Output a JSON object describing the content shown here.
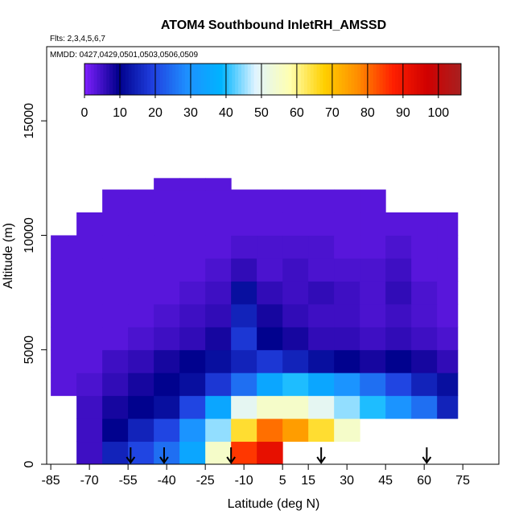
{
  "chart_data": {
    "type": "heatmap",
    "title": "ATOM4 Southbound InletRH_AMSSD",
    "notes": [
      "Flts: 2,3,4,5,6,7",
      "MMDD: 0427,0429,0501,0503,0506,0509"
    ],
    "x_label": "Latitude (deg N)",
    "y_label": "Altitude (m)",
    "x_edges": [
      -85,
      -75,
      -65,
      -55,
      -45,
      -35,
      -25,
      -15,
      -5,
      5,
      15,
      25,
      35,
      45,
      55,
      65,
      73
    ],
    "y_edges": [
      0,
      1000,
      2000,
      3000,
      4000,
      5000,
      6000,
      7000,
      8000,
      9000,
      10000,
      11000,
      12000,
      12500
    ],
    "values": [
      [
        null,
        5,
        15,
        20,
        25,
        35,
        55,
        85,
        92,
        null,
        null,
        null,
        null,
        null,
        null,
        null
      ],
      [
        null,
        5,
        10,
        15,
        20,
        30,
        45,
        65,
        80,
        75,
        65,
        55,
        null,
        null,
        null,
        null
      ],
      [
        null,
        5,
        8,
        10,
        12,
        20,
        35,
        50,
        55,
        55,
        50,
        45,
        40,
        30,
        25,
        15
      ],
      [
        3,
        4,
        6,
        8,
        10,
        12,
        18,
        25,
        35,
        40,
        35,
        30,
        25,
        20,
        15,
        12
      ],
      [
        3,
        3,
        5,
        6,
        8,
        10,
        12,
        15,
        18,
        15,
        12,
        10,
        8,
        10,
        8,
        6
      ],
      [
        3,
        3,
        3,
        4,
        5,
        6,
        8,
        18,
        10,
        8,
        6,
        6,
        5,
        6,
        5,
        4
      ],
      [
        3,
        3,
        3,
        3,
        4,
        5,
        6,
        15,
        8,
        6,
        5,
        5,
        4,
        5,
        4,
        3
      ],
      [
        3,
        3,
        3,
        3,
        3,
        4,
        5,
        12,
        6,
        5,
        6,
        5,
        4,
        6,
        4,
        3
      ],
      [
        3,
        3,
        3,
        3,
        3,
        3,
        4,
        6,
        4,
        5,
        4,
        4,
        4,
        5,
        3,
        3
      ],
      [
        3,
        3,
        3,
        3,
        3,
        3,
        3,
        4,
        4,
        4,
        4,
        3,
        3,
        4,
        3,
        3
      ],
      [
        null,
        3,
        3,
        3,
        3,
        3,
        3,
        3,
        3,
        3,
        3,
        3,
        3,
        3,
        3,
        3
      ],
      [
        null,
        null,
        3,
        3,
        3,
        3,
        3,
        3,
        3,
        3,
        3,
        3,
        3,
        null,
        null,
        null
      ],
      [
        null,
        null,
        null,
        null,
        3,
        3,
        3,
        null,
        null,
        null,
        null,
        null,
        null,
        null,
        null,
        null
      ]
    ],
    "xlim": [
      -86.6,
      89
    ],
    "ylim": [
      0,
      18240
    ],
    "xticks": [
      -85,
      -70,
      -55,
      -40,
      -25,
      -10,
      5,
      15,
      30,
      45,
      60,
      75
    ],
    "yticks": [
      0,
      5000,
      10000,
      15000
    ],
    "clim": [
      0,
      106.4
    ],
    "cticks": [
      0,
      10,
      20,
      30,
      40,
      50,
      60,
      70,
      80,
      90,
      100
    ],
    "colors": [
      "#8020ff",
      "#00008b",
      "#2040e0",
      "#1e90ff",
      "#00b4ff",
      "#e0f4ff",
      "#ffffb0",
      "#ffd000",
      "#ff8c00",
      "#ff2000",
      "#d00000",
      "#a82020"
    ],
    "markers_x": [
      -54,
      -41,
      -15,
      20,
      61
    ]
  }
}
